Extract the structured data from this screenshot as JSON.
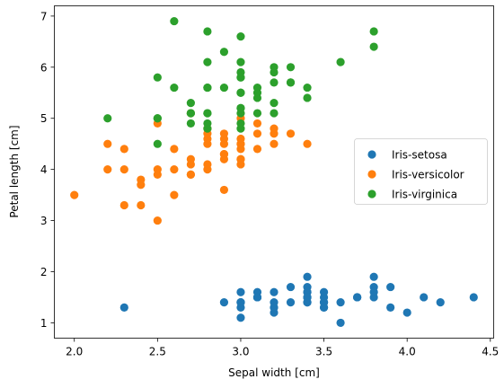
{
  "chart_data": {
    "type": "scatter",
    "title": "",
    "xlabel": "Sepal width [cm]",
    "ylabel": "Petal length [cm]",
    "xlim": [
      1.88,
      4.52
    ],
    "ylim": [
      0.7,
      7.2
    ],
    "xticks": [
      "2.0",
      "2.5",
      "3.0",
      "3.5",
      "4.0",
      "4.5"
    ],
    "yticks": [
      "1",
      "2",
      "3",
      "4",
      "5",
      "6",
      "7"
    ],
    "grid": false,
    "legend_position": "center-right",
    "series": [
      {
        "name": "Iris-setosa",
        "color": "#1f77b4",
        "points": [
          [
            3.5,
            1.4
          ],
          [
            3.0,
            1.4
          ],
          [
            3.2,
            1.3
          ],
          [
            3.1,
            1.5
          ],
          [
            3.6,
            1.4
          ],
          [
            3.9,
            1.7
          ],
          [
            3.4,
            1.4
          ],
          [
            3.4,
            1.5
          ],
          [
            2.9,
            1.4
          ],
          [
            3.1,
            1.5
          ],
          [
            3.7,
            1.5
          ],
          [
            3.4,
            1.6
          ],
          [
            3.0,
            1.4
          ],
          [
            3.0,
            1.1
          ],
          [
            4.0,
            1.2
          ],
          [
            4.4,
            1.5
          ],
          [
            3.9,
            1.3
          ],
          [
            3.5,
            1.4
          ],
          [
            3.8,
            1.7
          ],
          [
            3.8,
            1.5
          ],
          [
            3.4,
            1.7
          ],
          [
            3.7,
            1.5
          ],
          [
            3.6,
            1.0
          ],
          [
            3.3,
            1.7
          ],
          [
            3.4,
            1.9
          ],
          [
            3.0,
            1.6
          ],
          [
            3.4,
            1.6
          ],
          [
            3.5,
            1.5
          ],
          [
            3.4,
            1.4
          ],
          [
            3.2,
            1.6
          ],
          [
            3.1,
            1.6
          ],
          [
            3.4,
            1.5
          ],
          [
            4.1,
            1.5
          ],
          [
            4.2,
            1.4
          ],
          [
            3.1,
            1.5
          ],
          [
            3.2,
            1.2
          ],
          [
            3.5,
            1.3
          ],
          [
            3.1,
            1.5
          ],
          [
            3.0,
            1.3
          ],
          [
            3.4,
            1.5
          ],
          [
            3.5,
            1.3
          ],
          [
            2.3,
            1.3
          ],
          [
            3.2,
            1.3
          ],
          [
            3.5,
            1.6
          ],
          [
            3.8,
            1.9
          ],
          [
            3.0,
            1.4
          ],
          [
            3.8,
            1.6
          ],
          [
            3.2,
            1.4
          ],
          [
            3.7,
            1.5
          ],
          [
            3.3,
            1.4
          ]
        ]
      },
      {
        "name": "Iris-versicolor",
        "color": "#ff7f0e",
        "points": [
          [
            3.2,
            4.7
          ],
          [
            3.2,
            4.5
          ],
          [
            3.1,
            4.9
          ],
          [
            2.3,
            4.0
          ],
          [
            2.8,
            4.6
          ],
          [
            2.8,
            4.5
          ],
          [
            3.3,
            4.7
          ],
          [
            2.4,
            3.3
          ],
          [
            2.9,
            4.6
          ],
          [
            2.7,
            3.9
          ],
          [
            2.0,
            3.5
          ],
          [
            3.0,
            4.2
          ],
          [
            2.2,
            4.0
          ],
          [
            2.9,
            4.7
          ],
          [
            2.9,
            3.6
          ],
          [
            3.1,
            4.4
          ],
          [
            3.0,
            4.5
          ],
          [
            2.7,
            4.1
          ],
          [
            2.2,
            4.5
          ],
          [
            2.5,
            3.9
          ],
          [
            3.2,
            4.8
          ],
          [
            2.8,
            4.0
          ],
          [
            2.5,
            4.9
          ],
          [
            2.8,
            4.7
          ],
          [
            2.9,
            4.3
          ],
          [
            3.0,
            4.4
          ],
          [
            2.8,
            4.8
          ],
          [
            3.0,
            5.0
          ],
          [
            2.9,
            4.5
          ],
          [
            2.6,
            3.5
          ],
          [
            2.4,
            3.8
          ],
          [
            2.4,
            3.7
          ],
          [
            2.7,
            3.9
          ],
          [
            2.7,
            5.1
          ],
          [
            3.0,
            4.5
          ],
          [
            3.4,
            4.5
          ],
          [
            3.1,
            4.7
          ],
          [
            2.3,
            4.4
          ],
          [
            3.0,
            4.1
          ],
          [
            2.5,
            4.0
          ],
          [
            2.6,
            4.4
          ],
          [
            3.0,
            4.6
          ],
          [
            2.6,
            4.0
          ],
          [
            2.3,
            3.3
          ],
          [
            2.7,
            4.2
          ],
          [
            3.0,
            4.2
          ],
          [
            2.9,
            4.2
          ],
          [
            2.9,
            4.3
          ],
          [
            2.5,
            3.0
          ],
          [
            2.8,
            4.1
          ]
        ]
      },
      {
        "name": "Iris-virginica",
        "color": "#2ca02c",
        "points": [
          [
            3.3,
            6.0
          ],
          [
            2.7,
            5.1
          ],
          [
            3.0,
            5.9
          ],
          [
            2.9,
            5.6
          ],
          [
            3.0,
            5.8
          ],
          [
            3.0,
            6.6
          ],
          [
            2.5,
            4.5
          ],
          [
            2.9,
            6.3
          ],
          [
            2.5,
            5.8
          ],
          [
            3.6,
            6.1
          ],
          [
            3.2,
            5.1
          ],
          [
            2.7,
            5.3
          ],
          [
            3.0,
            5.5
          ],
          [
            2.5,
            5.0
          ],
          [
            2.8,
            5.1
          ],
          [
            3.2,
            5.3
          ],
          [
            3.0,
            5.5
          ],
          [
            3.8,
            6.7
          ],
          [
            2.6,
            6.9
          ],
          [
            2.2,
            5.0
          ],
          [
            3.2,
            5.7
          ],
          [
            2.8,
            4.9
          ],
          [
            2.8,
            6.7
          ],
          [
            2.7,
            4.9
          ],
          [
            3.3,
            5.7
          ],
          [
            3.2,
            6.0
          ],
          [
            2.8,
            4.8
          ],
          [
            3.0,
            4.9
          ],
          [
            2.8,
            5.6
          ],
          [
            3.0,
            5.8
          ],
          [
            2.8,
            6.1
          ],
          [
            3.8,
            6.4
          ],
          [
            2.8,
            5.6
          ],
          [
            2.8,
            5.1
          ],
          [
            2.6,
            5.6
          ],
          [
            3.0,
            6.1
          ],
          [
            3.4,
            5.6
          ],
          [
            3.1,
            5.5
          ],
          [
            3.0,
            4.8
          ],
          [
            3.1,
            5.4
          ],
          [
            3.1,
            5.6
          ],
          [
            3.1,
            5.1
          ],
          [
            2.7,
            5.1
          ],
          [
            3.2,
            5.9
          ],
          [
            3.3,
            5.7
          ],
          [
            3.0,
            5.2
          ],
          [
            2.5,
            5.0
          ],
          [
            3.0,
            5.2
          ],
          [
            3.4,
            5.4
          ],
          [
            3.0,
            5.1
          ]
        ]
      }
    ]
  }
}
